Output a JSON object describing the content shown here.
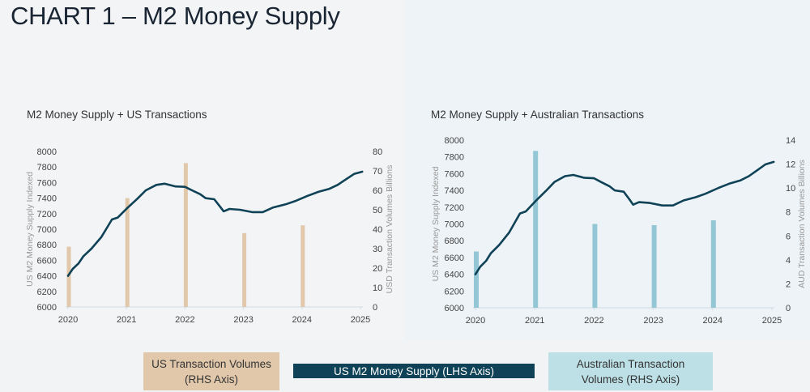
{
  "page": {
    "title": "CHART 1 – M2 Money Supply"
  },
  "colors": {
    "m2_line": "#0f4257",
    "us_bars": "#e2c8aa",
    "au_bars": "#94c7d6",
    "legend_us_bg": "#e1c8ab",
    "legend_m2_bg": "#0f4257",
    "legend_au_bg": "#bde0e6"
  },
  "legend": {
    "us": "US Transaction Volumes (RHS Axis)",
    "us_line1": "US Transaction Volumes",
    "us_line2": "(RHS Axis)",
    "m2": "US M2 Money Supply (LHS Axis)",
    "au_line1": "Australian Transaction",
    "au_line2": "Volumes (RHS Axis)"
  },
  "chart_data": [
    {
      "type": "bar+line",
      "title": "M2 Money Supply + US Transactions",
      "xlabel": "",
      "ylabel": "US M2 Money Supply Indexed",
      "y2label": "USD Transaction Volumes  Billions",
      "x_ticks": [
        "2020",
        "2021",
        "2022",
        "2023",
        "2024",
        "2025"
      ],
      "xlim": [
        2020,
        2025
      ],
      "ylim": [
        6000,
        8000
      ],
      "y_ticks": [
        6000,
        6200,
        6400,
        6600,
        6800,
        7000,
        7200,
        7400,
        7600,
        7800,
        8000
      ],
      "y2lim": [
        0,
        80
      ],
      "y2_ticks": [
        0,
        10,
        20,
        30,
        40,
        50,
        60,
        70,
        80
      ],
      "grid": false,
      "legend": "bottom",
      "bars": {
        "name": "US Transaction Volumes (RHS Axis)",
        "axis": "right",
        "x": [
          2020,
          2021,
          2022,
          2023,
          2024
        ],
        "values": [
          31,
          56,
          74,
          38,
          42
        ]
      },
      "line": {
        "name": "US M2 Money Supply (LHS Axis)",
        "axis": "left",
        "x": [
          2020.0,
          2020.08,
          2020.18,
          2020.26,
          2020.4,
          2020.57,
          2020.75,
          2020.85,
          2021.01,
          2021.19,
          2021.33,
          2021.51,
          2021.65,
          2021.84,
          2022.0,
          2022.12,
          2022.26,
          2022.35,
          2022.5,
          2022.6,
          2022.66,
          2022.76,
          2022.94,
          2023.15,
          2023.33,
          2023.51,
          2023.72,
          2023.88,
          2024.1,
          2024.28,
          2024.47,
          2024.61,
          2024.75,
          2024.89,
          2025.03
        ],
        "values": [
          6400,
          6490,
          6560,
          6650,
          6750,
          6900,
          7125,
          7150,
          7270,
          7395,
          7500,
          7570,
          7585,
          7550,
          7545,
          7500,
          7450,
          7400,
          7385,
          7290,
          7230,
          7260,
          7250,
          7220,
          7220,
          7280,
          7320,
          7360,
          7430,
          7480,
          7520,
          7570,
          7640,
          7710,
          7740
        ]
      }
    },
    {
      "type": "bar+line",
      "title": "M2 Money Supply + Australian Transactions",
      "xlabel": "",
      "ylabel": "US M2 Money Supply Indexed",
      "y2label": "AUD Transaction Volumes  Billions",
      "x_ticks": [
        "2020",
        "2021",
        "2022",
        "2023",
        "2024",
        "2025"
      ],
      "xlim": [
        2020,
        2025
      ],
      "ylim": [
        6000,
        8000
      ],
      "y_ticks": [
        6000,
        6200,
        6400,
        6600,
        6800,
        7000,
        7200,
        7400,
        7600,
        7800,
        8000
      ],
      "y2lim": [
        0,
        14
      ],
      "y2_ticks": [
        0,
        2,
        4,
        6,
        8,
        10,
        12,
        14
      ],
      "grid": false,
      "legend": "bottom",
      "bars": {
        "name": "Australian Transaction Volumes (RHS Axis)",
        "axis": "right",
        "x": [
          2020,
          2021,
          2022,
          2023,
          2024
        ],
        "values": [
          4.7,
          13.1,
          7.0,
          6.9,
          7.3
        ]
      },
      "line": {
        "name": "US M2 Money Supply (LHS Axis)",
        "axis": "left",
        "x": [
          2020.0,
          2020.08,
          2020.18,
          2020.26,
          2020.4,
          2020.57,
          2020.75,
          2020.85,
          2021.01,
          2021.19,
          2021.33,
          2021.51,
          2021.65,
          2021.84,
          2022.0,
          2022.12,
          2022.26,
          2022.35,
          2022.5,
          2022.6,
          2022.66,
          2022.76,
          2022.94,
          2023.15,
          2023.33,
          2023.51,
          2023.72,
          2023.88,
          2024.1,
          2024.28,
          2024.47,
          2024.61,
          2024.75,
          2024.89,
          2025.03
        ],
        "values": [
          6400,
          6490,
          6560,
          6650,
          6750,
          6900,
          7125,
          7150,
          7270,
          7395,
          7500,
          7570,
          7585,
          7550,
          7545,
          7500,
          7450,
          7400,
          7385,
          7290,
          7230,
          7260,
          7250,
          7220,
          7220,
          7280,
          7320,
          7360,
          7430,
          7480,
          7520,
          7570,
          7640,
          7710,
          7740
        ]
      }
    }
  ]
}
